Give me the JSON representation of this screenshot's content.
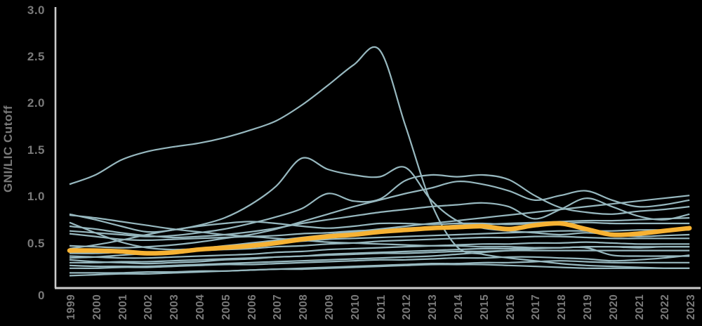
{
  "chart_data": {
    "type": "line",
    "title": "",
    "xlabel": "",
    "ylabel": "GNI/LIC Cutoff",
    "ylim": [
      0,
      3.0
    ],
    "grid": false,
    "legend_position": "none",
    "background": "#000000",
    "colors": {
      "country_line": "#97b8bf",
      "median_line": "#f7b233",
      "axis_line": "#cccccc",
      "tick_label": "#7a7a7a",
      "axis_title": "#7a7a7a"
    },
    "y_ticks": [
      {
        "label": "3.0",
        "value": 3.0
      },
      {
        "label": "2.5",
        "value": 2.5
      },
      {
        "label": "2.0",
        "value": 2.0
      },
      {
        "label": "1.5",
        "value": 1.5
      },
      {
        "label": "1.0",
        "value": 1.0
      },
      {
        "label": "0.5",
        "value": 0.5
      },
      {
        "label": "0",
        "value": 0.0
      }
    ],
    "x": [
      1999,
      2000,
      2001,
      2002,
      2003,
      2004,
      2005,
      2006,
      2007,
      2008,
      2009,
      2010,
      2011,
      2012,
      2013,
      2014,
      2015,
      2016,
      2017,
      2018,
      2019,
      2020,
      2021,
      2022,
      2023
    ],
    "series": [
      {
        "id": "country-01",
        "role": "country",
        "values": [
          1.12,
          1.22,
          1.38,
          1.47,
          1.52,
          1.56,
          1.62,
          1.7,
          1.8,
          1.97,
          2.18,
          2.4,
          2.56,
          1.75,
          0.92,
          0.45,
          0.37,
          0.33,
          0.3,
          0.27,
          0.25,
          0.24,
          0.23,
          0.22,
          0.22
        ]
      },
      {
        "id": "country-02",
        "role": "country",
        "values": [
          0.8,
          0.74,
          0.67,
          0.61,
          0.63,
          0.68,
          0.76,
          0.9,
          1.1,
          1.4,
          1.28,
          1.22,
          1.2,
          1.3,
          0.95,
          0.73,
          0.65,
          0.62,
          0.6,
          0.58,
          0.6,
          0.58,
          0.56,
          0.57,
          0.58
        ]
      },
      {
        "id": "country-03",
        "role": "country",
        "values": [
          0.62,
          0.6,
          0.58,
          0.56,
          0.57,
          0.6,
          0.64,
          0.7,
          0.77,
          0.86,
          1.02,
          0.94,
          0.96,
          1.16,
          1.22,
          1.2,
          1.22,
          1.17,
          1.0,
          0.87,
          0.82,
          0.8,
          0.83,
          0.85,
          0.88
        ]
      },
      {
        "id": "country-04",
        "role": "country",
        "values": [
          0.46,
          0.45,
          0.44,
          0.45,
          0.47,
          0.5,
          0.54,
          0.58,
          0.64,
          0.72,
          0.8,
          0.88,
          0.95,
          1.02,
          1.08,
          1.15,
          1.12,
          1.05,
          0.95,
          1.0,
          1.05,
          0.95,
          0.88,
          0.9,
          0.95
        ]
      },
      {
        "id": "country-05",
        "role": "country",
        "values": [
          0.67,
          0.64,
          0.6,
          0.57,
          0.55,
          0.56,
          0.58,
          0.61,
          0.65,
          0.7,
          0.74,
          0.78,
          0.82,
          0.85,
          0.88,
          0.9,
          0.92,
          0.88,
          0.75,
          0.85,
          0.97,
          0.88,
          0.78,
          0.74,
          0.8
        ]
      },
      {
        "id": "country-06",
        "role": "country",
        "values": [
          0.33,
          0.34,
          0.36,
          0.38,
          0.4,
          0.43,
          0.46,
          0.49,
          0.52,
          0.55,
          0.58,
          0.61,
          0.64,
          0.67,
          0.7,
          0.73,
          0.76,
          0.79,
          0.82,
          0.85,
          0.88,
          0.91,
          0.94,
          0.97,
          1.0
        ]
      },
      {
        "id": "country-07",
        "role": "country",
        "values": [
          0.79,
          0.76,
          0.72,
          0.68,
          0.64,
          0.61,
          0.58,
          0.56,
          0.54,
          0.52,
          0.5,
          0.49,
          0.48,
          0.47,
          0.46,
          0.46,
          0.45,
          0.45,
          0.44,
          0.44,
          0.45,
          0.45,
          0.44,
          0.45,
          0.45
        ]
      },
      {
        "id": "country-08",
        "role": "country",
        "values": [
          0.71,
          0.6,
          0.5,
          0.44,
          0.42,
          0.43,
          0.45,
          0.47,
          0.49,
          0.51,
          0.53,
          0.54,
          0.55,
          0.56,
          0.57,
          0.58,
          0.59,
          0.6,
          0.61,
          0.62,
          0.62,
          0.62,
          0.63,
          0.63,
          0.63
        ]
      },
      {
        "id": "country-09",
        "role": "country",
        "values": [
          0.59,
          0.56,
          0.53,
          0.52,
          0.53,
          0.54,
          0.55,
          0.56,
          0.57,
          0.59,
          0.6,
          0.62,
          0.63,
          0.65,
          0.66,
          0.68,
          0.69,
          0.7,
          0.71,
          0.72,
          0.73,
          0.73,
          0.74,
          0.75,
          0.76
        ]
      },
      {
        "id": "country-10",
        "role": "country",
        "values": [
          0.43,
          0.47,
          0.52,
          0.58,
          0.63,
          0.67,
          0.7,
          0.72,
          0.7,
          0.67,
          0.65,
          0.67,
          0.7,
          0.7,
          0.69,
          0.7,
          0.7,
          0.69,
          0.7,
          0.7,
          0.71,
          0.7,
          0.7,
          0.7,
          0.7
        ]
      },
      {
        "id": "country-11",
        "role": "country",
        "values": [
          0.38,
          0.38,
          0.39,
          0.39,
          0.4,
          0.41,
          0.42,
          0.43,
          0.45,
          0.46,
          0.48,
          0.49,
          0.51,
          0.52,
          0.53,
          0.54,
          0.55,
          0.55,
          0.56,
          0.56,
          0.55,
          0.54,
          0.54,
          0.54,
          0.54
        ]
      },
      {
        "id": "country-12",
        "role": "country",
        "values": [
          0.35,
          0.34,
          0.33,
          0.33,
          0.34,
          0.35,
          0.36,
          0.37,
          0.39,
          0.4,
          0.42,
          0.43,
          0.44,
          0.45,
          0.46,
          0.47,
          0.48,
          0.48,
          0.49,
          0.49,
          0.5,
          0.49,
          0.48,
          0.48,
          0.48
        ]
      },
      {
        "id": "country-13",
        "role": "country",
        "values": [
          0.31,
          0.29,
          0.28,
          0.27,
          0.28,
          0.29,
          0.31,
          0.32,
          0.34,
          0.35,
          0.37,
          0.38,
          0.39,
          0.4,
          0.41,
          0.42,
          0.43,
          0.43,
          0.44,
          0.44,
          0.45,
          0.45,
          0.45,
          0.45,
          0.45
        ]
      },
      {
        "id": "country-14",
        "role": "country",
        "values": [
          0.28,
          0.28,
          0.29,
          0.29,
          0.3,
          0.31,
          0.32,
          0.33,
          0.34,
          0.35,
          0.36,
          0.37,
          0.38,
          0.38,
          0.39,
          0.4,
          0.4,
          0.41,
          0.41,
          0.41,
          0.41,
          0.41,
          0.41,
          0.41,
          0.41
        ]
      },
      {
        "id": "country-15",
        "role": "country",
        "values": [
          0.25,
          0.24,
          0.24,
          0.24,
          0.25,
          0.26,
          0.27,
          0.28,
          0.29,
          0.3,
          0.31,
          0.32,
          0.33,
          0.34,
          0.35,
          0.37,
          0.39,
          0.41,
          0.43,
          0.44,
          0.44,
          0.36,
          0.35,
          0.35,
          0.35
        ]
      },
      {
        "id": "country-16",
        "role": "country",
        "values": [
          0.22,
          0.22,
          0.23,
          0.23,
          0.24,
          0.25,
          0.26,
          0.26,
          0.27,
          0.28,
          0.29,
          0.3,
          0.31,
          0.31,
          0.32,
          0.33,
          0.33,
          0.34,
          0.34,
          0.33,
          0.32,
          0.3,
          0.31,
          0.33,
          0.36
        ]
      },
      {
        "id": "country-17",
        "role": "country",
        "values": [
          0.17,
          0.17,
          0.17,
          0.18,
          0.18,
          0.19,
          0.19,
          0.2,
          0.21,
          0.21,
          0.22,
          0.23,
          0.24,
          0.25,
          0.26,
          0.26,
          0.26,
          0.25,
          0.24,
          0.23,
          0.22,
          0.22,
          0.22,
          0.22,
          0.22
        ]
      },
      {
        "id": "country-18",
        "role": "country",
        "values": [
          0.14,
          0.15,
          0.16,
          0.16,
          0.17,
          0.18,
          0.19,
          0.2,
          0.21,
          0.22,
          0.23,
          0.24,
          0.25,
          0.26,
          0.27,
          0.27,
          0.28,
          0.28,
          0.29,
          0.3,
          0.29,
          0.28,
          0.28,
          0.28,
          0.28
        ]
      },
      {
        "id": "median",
        "role": "median",
        "values": [
          0.41,
          0.41,
          0.4,
          0.38,
          0.39,
          0.42,
          0.44,
          0.46,
          0.49,
          0.53,
          0.56,
          0.58,
          0.61,
          0.63,
          0.65,
          0.66,
          0.67,
          0.64,
          0.68,
          0.7,
          0.64,
          0.58,
          0.59,
          0.62,
          0.65
        ]
      }
    ]
  }
}
